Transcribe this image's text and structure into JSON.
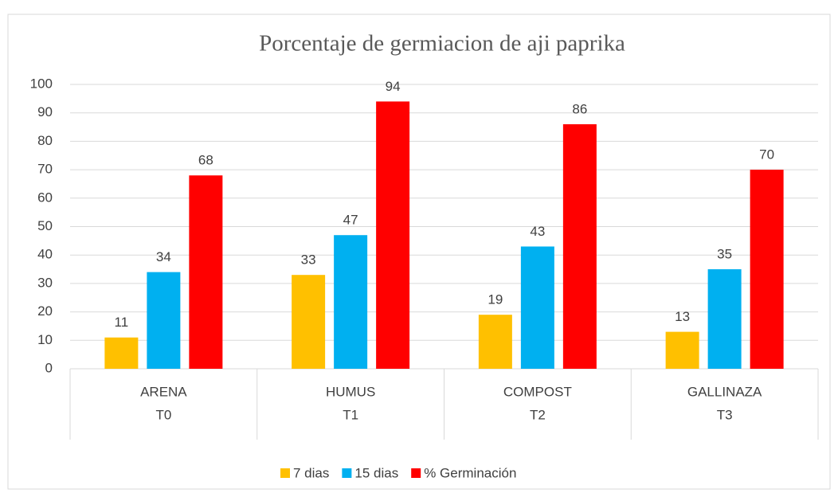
{
  "chart_data": {
    "type": "bar",
    "title": "Porcentaje de germiacion de aji paprika",
    "categories": [
      "ARENA",
      "HUMUS",
      "COMPOST",
      "GALLINAZA"
    ],
    "category_groups": [
      "T0",
      "T1",
      "T2",
      "T3"
    ],
    "series": [
      {
        "name": "7 dias",
        "color": "#ffc000",
        "values": [
          11,
          33,
          19,
          13
        ]
      },
      {
        "name": "15 dias",
        "color": "#00b0f0",
        "values": [
          34,
          47,
          43,
          35
        ]
      },
      {
        "name": "% Germinación",
        "color": "#ff0000",
        "values": [
          68,
          94,
          86,
          70
        ]
      }
    ],
    "ylim": [
      0,
      100
    ],
    "yticks": [
      0,
      10,
      20,
      30,
      40,
      50,
      60,
      70,
      80,
      90,
      100
    ],
    "grid": true,
    "legend": "bottom"
  }
}
